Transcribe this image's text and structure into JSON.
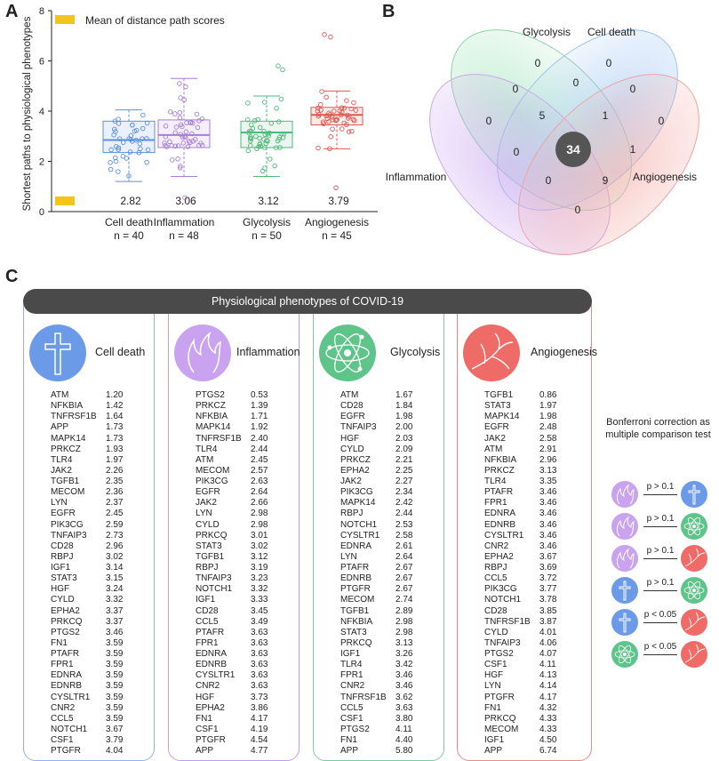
{
  "panels": {
    "a": "A",
    "b": "B",
    "c": "C"
  },
  "chart_data": [
    {
      "type": "box",
      "ylabel": "Shortest paths to physiological phenotypes",
      "ylim": [
        0,
        8
      ],
      "yticks": [
        "0",
        "2",
        "4",
        "6",
        "8"
      ],
      "legend": "Mean of distance path scores",
      "categories": [
        "Cell death",
        "Inflammation",
        "Glycolysis",
        "Angiogenesis"
      ],
      "counts": [
        "n = 40",
        "n = 48",
        "n = 50",
        "n = 45"
      ],
      "means": [
        "2.82",
        "3.06",
        "3.12",
        "3.79"
      ],
      "colors": [
        "#5b8fe0",
        "#a67fd6",
        "#4fb87a",
        "#e0574f"
      ],
      "boxes": [
        {
          "q1": 2.35,
          "median": 2.85,
          "q3": 3.6,
          "whisker_low": 1.2,
          "whisker_high": 4.05
        },
        {
          "q1": 2.55,
          "median": 3.05,
          "q3": 3.65,
          "whisker_low": 1.4,
          "whisker_high": 5.3
        },
        {
          "q1": 2.55,
          "median": 3.15,
          "q3": 3.6,
          "whisker_low": 1.4,
          "whisker_high": 4.6
        },
        {
          "q1": 3.45,
          "median": 3.85,
          "q3": 4.15,
          "whisker_low": 2.5,
          "whisker_high": 4.8
        }
      ]
    },
    {
      "type": "venn",
      "sets": [
        "Glycolysis",
        "Cell death",
        "Inflammation",
        "Angiogenesis"
      ],
      "regions": {
        "glycolysis_only": "0",
        "celldeath_only": "0",
        "inflammation_only": "0",
        "angiogenesis_only": "0",
        "gly_cd": "0",
        "inf_gly": "0",
        "cd_ang": "0",
        "inf_gly_cd": "5",
        "gly_cd_ang": "1",
        "all_four": "34",
        "inf_gly_ang": "0",
        "gly_ang": "1",
        "inf_cd_ang": "0",
        "cd_ang_only": "9",
        "inf_ang": "0"
      }
    }
  ],
  "section_c": {
    "banner": "Physiological phenotypes of COVID-19",
    "columns": [
      {
        "title": "Cell death",
        "color": "#6b9be8",
        "border": "#8fb2ea",
        "genes": [
          [
            "ATM",
            "1.20"
          ],
          [
            "NFKBIA",
            "1.42"
          ],
          [
            "TNFRSF1B",
            "1.64"
          ],
          [
            "APP",
            "1.73"
          ],
          [
            "MAPK14",
            "1.73"
          ],
          [
            "PRKCZ",
            "1.93"
          ],
          [
            "TLR4",
            "1.97"
          ],
          [
            "JAK2",
            "2.26"
          ],
          [
            "TGFB1",
            "2.35"
          ],
          [
            "MECOM",
            "2.36"
          ],
          [
            "LYN",
            "2.37"
          ],
          [
            "EGFR",
            "2.45"
          ],
          [
            "PIK3CG",
            "2.59"
          ],
          [
            "TNFAIP3",
            "2.73"
          ],
          [
            "CD28",
            "2.96"
          ],
          [
            "RBPJ",
            "3.02"
          ],
          [
            "IGF1",
            "3.14"
          ],
          [
            "STAT3",
            "3.15"
          ],
          [
            "HGF",
            "3.24"
          ],
          [
            "CYLD",
            "3.32"
          ],
          [
            "EPHA2",
            "3.37"
          ],
          [
            "PRKCQ",
            "3.37"
          ],
          [
            "PTGS2",
            "3.46"
          ],
          [
            "FN1",
            "3.59"
          ],
          [
            "PTAFR",
            "3.59"
          ],
          [
            "FPR1",
            "3.59"
          ],
          [
            "EDNRA",
            "3.59"
          ],
          [
            "EDNRB",
            "3.59"
          ],
          [
            "CYSLTR1",
            "3.59"
          ],
          [
            "CNR2",
            "3.59"
          ],
          [
            "CCL5",
            "3.59"
          ],
          [
            "NOTCH1",
            "3.67"
          ],
          [
            "CSF1",
            "3.79"
          ],
          [
            "PTGFR",
            "4.04"
          ]
        ]
      },
      {
        "title": "Inflammation",
        "color": "#c9a3ef",
        "border": "#c29be8",
        "genes": [
          [
            "PTGS2",
            "0.53"
          ],
          [
            "PRKCZ",
            "1.39"
          ],
          [
            "NFKBIA",
            "1.71"
          ],
          [
            "MAPK14",
            "1.92"
          ],
          [
            "TNFRSF1B",
            "2.40"
          ],
          [
            "TLR4",
            "2.44"
          ],
          [
            "ATM",
            "2.45"
          ],
          [
            "MECOM",
            "2.57"
          ],
          [
            "PIK3CG",
            "2.63"
          ],
          [
            "EGFR",
            "2.64"
          ],
          [
            "JAK2",
            "2.66"
          ],
          [
            "LYN",
            "2.98"
          ],
          [
            "CYLD",
            "2.98"
          ],
          [
            "PRKCQ",
            "3.01"
          ],
          [
            "STAT3",
            "3.02"
          ],
          [
            "TGFB1",
            "3.12"
          ],
          [
            "RBPJ",
            "3.19"
          ],
          [
            "TNFAIP3",
            "3.23"
          ],
          [
            "NOTCH1",
            "3.32"
          ],
          [
            "IGF1",
            "3.33"
          ],
          [
            "CD28",
            "3.45"
          ],
          [
            "CCL5",
            "3.49"
          ],
          [
            "PTAFR",
            "3.63"
          ],
          [
            "FPR1",
            "3.63"
          ],
          [
            "EDNRA",
            "3.63"
          ],
          [
            "EDNRB",
            "3.63"
          ],
          [
            "CYSLTR1",
            "3.63"
          ],
          [
            "CNR2",
            "3.63"
          ],
          [
            "HGF",
            "3.73"
          ],
          [
            "EPHA2",
            "3.86"
          ],
          [
            "FN1",
            "4.17"
          ],
          [
            "CSF1",
            "4.19"
          ],
          [
            "PTGFR",
            "4.54"
          ],
          [
            "APP",
            "4.77"
          ]
        ]
      },
      {
        "title": "Glycolysis",
        "color": "#5fc48a",
        "border": "#7fcb9d",
        "genes": [
          [
            "ATM",
            "1.67"
          ],
          [
            "CD28",
            "1.84"
          ],
          [
            "EGFR",
            "1.98"
          ],
          [
            "TNFAIP3",
            "2.00"
          ],
          [
            "HGF",
            "2.03"
          ],
          [
            "CYLD",
            "2.09"
          ],
          [
            "PRKCZ",
            "2.21"
          ],
          [
            "EPHA2",
            "2.25"
          ],
          [
            "JAK2",
            "2.27"
          ],
          [
            "PIK3CG",
            "2.34"
          ],
          [
            "MAPK14",
            "2.42"
          ],
          [
            "RBPJ",
            "2.44"
          ],
          [
            "NOTCH1",
            "2.53"
          ],
          [
            "CYSLTR1",
            "2.58"
          ],
          [
            "EDNRA",
            "2.61"
          ],
          [
            "LYN",
            "2.64"
          ],
          [
            "PTAFR",
            "2.67"
          ],
          [
            "EDNRB",
            "2.67"
          ],
          [
            "PTGFR",
            "2.67"
          ],
          [
            "MECOM",
            "2.74"
          ],
          [
            "TGFB1",
            "2.89"
          ],
          [
            "NFKBIA",
            "2.98"
          ],
          [
            "STAT3",
            "2.98"
          ],
          [
            "PRKCQ",
            "3.13"
          ],
          [
            "IGF1",
            "3.26"
          ],
          [
            "TLR4",
            "3.42"
          ],
          [
            "FPR1",
            "3.46"
          ],
          [
            "CNR2",
            "3.46"
          ],
          [
            "TNFRSF1B",
            "3.62"
          ],
          [
            "CCL5",
            "3.63"
          ],
          [
            "CSF1",
            "3.80"
          ],
          [
            "PTGS2",
            "4.11"
          ],
          [
            "FN1",
            "4.40"
          ],
          [
            "APP",
            "5.80"
          ]
        ]
      },
      {
        "title": "Angiogenesis",
        "color": "#ef6b67",
        "border": "#e98a86",
        "genes": [
          [
            "TGFB1",
            "0.86"
          ],
          [
            "STAT3",
            "1.97"
          ],
          [
            "MAPK14",
            "1.98"
          ],
          [
            "EGFR",
            "2.48"
          ],
          [
            "JAK2",
            "2.58"
          ],
          [
            "ATM",
            "2.91"
          ],
          [
            "NFKBIA",
            "2.96"
          ],
          [
            "PRKCZ",
            "3.13"
          ],
          [
            "TLR4",
            "3.35"
          ],
          [
            "PTAFR",
            "3.46"
          ],
          [
            "FPR1",
            "3.46"
          ],
          [
            "EDNRA",
            "3.46"
          ],
          [
            "EDNRB",
            "3.46"
          ],
          [
            "CYSLTR1",
            "3.46"
          ],
          [
            "CNR2",
            "3.46"
          ],
          [
            "EPHA2",
            "3.67"
          ],
          [
            "RBPJ",
            "3.69"
          ],
          [
            "CCL5",
            "3.72"
          ],
          [
            "PIK3CG",
            "3.77"
          ],
          [
            "NOTCH1",
            "3.78"
          ],
          [
            "CD28",
            "3.85"
          ],
          [
            "TNFRSF1B",
            "3.87"
          ],
          [
            "CYLD",
            "4.01"
          ],
          [
            "TNFAIP3",
            "4.06"
          ],
          [
            "PTGS2",
            "4.07"
          ],
          [
            "CSF1",
            "4.11"
          ],
          [
            "HGF",
            "4.13"
          ],
          [
            "LYN",
            "4.14"
          ],
          [
            "PTGFR",
            "4.17"
          ],
          [
            "FN1",
            "4.32"
          ],
          [
            "PRKCQ",
            "4.33"
          ],
          [
            "MECOM",
            "4.33"
          ],
          [
            "IGF1",
            "4.50"
          ],
          [
            "APP",
            "6.74"
          ]
        ]
      }
    ],
    "bonferroni": {
      "title_line1": "Bonferroni correction as",
      "title_line2": "multiple comparison test",
      "rows": [
        {
          "left": "inflammation",
          "right": "cell-death",
          "label": "p > 0.1"
        },
        {
          "left": "inflammation",
          "right": "glycolysis",
          "label": "p > 0.1"
        },
        {
          "left": "inflammation",
          "right": "angiogenesis",
          "label": "p > 0.1"
        },
        {
          "left": "cell-death",
          "right": "glycolysis",
          "label": "p > 0.1"
        },
        {
          "left": "cell-death",
          "right": "angiogenesis",
          "label": "p < 0.05"
        },
        {
          "left": "glycolysis",
          "right": "angiogenesis",
          "label": "p < 0.05"
        }
      ]
    }
  }
}
